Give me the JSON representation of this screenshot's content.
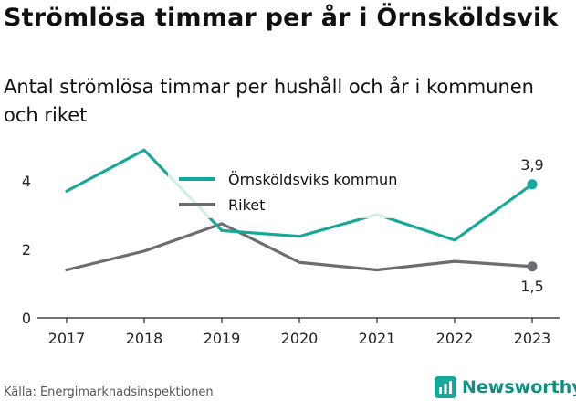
{
  "title": "Strömlösa timmar per år i Örnsköldsvik",
  "subtitle": "Antal strömlösa timmar per hushåll och år i kommunen och riket",
  "source": "Källa: Energimarknadsinspektionen",
  "brand": {
    "name": "Newsworthy",
    "icon": "bar-chart-icon"
  },
  "colors": {
    "kommun": "#16a89a",
    "riket": "#6c6c72",
    "brand": "#0e8f83"
  },
  "chart_data": {
    "type": "line",
    "x": [
      "2017",
      "2018",
      "2019",
      "2020",
      "2021",
      "2022",
      "2023"
    ],
    "series": [
      {
        "name": "Örnsköldsviks kommun",
        "values": [
          3.7,
          4.9,
          2.55,
          2.38,
          3.02,
          2.27,
          3.9
        ],
        "color": "#16a89a",
        "end_label": "3,9"
      },
      {
        "name": "Riket",
        "values": [
          1.4,
          1.95,
          2.75,
          1.62,
          1.4,
          1.65,
          1.5
        ],
        "color": "#6c6c72",
        "end_label": "1,5"
      }
    ],
    "yticks": [
      "0",
      "2",
      "4"
    ],
    "ylim": [
      0,
      5.2
    ],
    "legend": "top-center",
    "grid": false
  }
}
